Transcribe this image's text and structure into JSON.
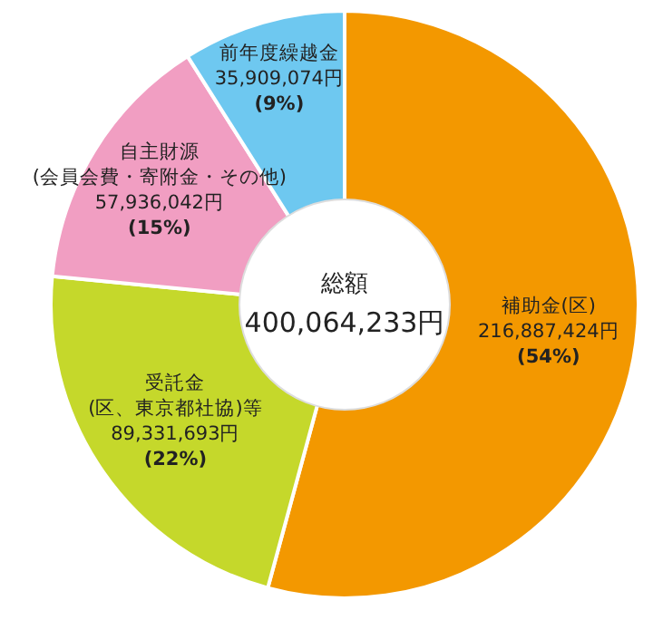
{
  "chart_data": {
    "type": "donut",
    "categories": [
      "補助金(区)",
      "受託金\n(区、東京都社協)等",
      "自主財源\n(会員会費・寄附金・その他)",
      "前年度繰越金"
    ],
    "values": [
      216887424,
      89331693,
      57936042,
      35909074
    ],
    "value_labels": [
      "216,887,424円\n(54%)",
      "89,331,693円\n(22%)",
      "57,936,042円\n(15%)",
      "35,909,074円\n(9%)"
    ],
    "colors": [
      "#f39800",
      "#c5d82b",
      "#f19ec2",
      "#6ec8f0"
    ],
    "annotations": [
      "総額",
      "400,064,233円"
    ]
  }
}
